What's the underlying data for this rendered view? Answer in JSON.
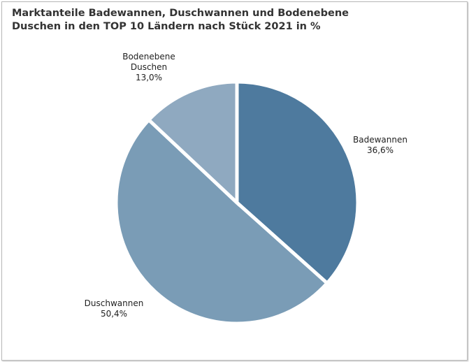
{
  "chart_data": {
    "type": "pie",
    "title_lines": [
      "Marktanteile Badewannen, Duschwannen und Bodenebene",
      "Duschen in den TOP 10 Ländern nach Stück 2021 in %"
    ],
    "slices": [
      {
        "label_lines": [
          "Badewannen"
        ],
        "value_label": "36,6%",
        "value": 36.6,
        "color": "#4e7a9e"
      },
      {
        "label_lines": [
          "Duschwannen"
        ],
        "value_label": "50,4%",
        "value": 50.4,
        "color": "#7a9cb6"
      },
      {
        "label_lines": [
          "Bodenebene",
          "Duschen"
        ],
        "value_label": "13,0%",
        "value": 13.0,
        "color": "#8fa9c0"
      }
    ],
    "start_angle_deg": 0,
    "direction": "clockwise",
    "legend": "none"
  }
}
